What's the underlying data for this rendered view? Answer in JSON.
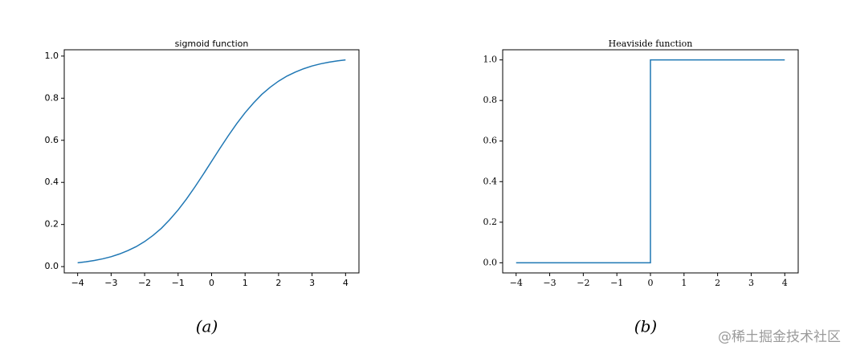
{
  "chart_data": [
    {
      "type": "line",
      "title": "sigmoid function",
      "caption": "(a)",
      "font": "sans",
      "x": [
        -4,
        -3.75,
        -3.5,
        -3.25,
        -3,
        -2.75,
        -2.5,
        -2.25,
        -2,
        -1.75,
        -1.5,
        -1.25,
        -1,
        -0.75,
        -0.5,
        -0.25,
        0,
        0.25,
        0.5,
        0.75,
        1,
        1.25,
        1.5,
        1.75,
        2,
        2.25,
        2.5,
        2.75,
        3,
        3.25,
        3.5,
        3.75,
        4
      ],
      "series": [
        {
          "color": "#1f77b4",
          "values": [
            0.018,
            0.023,
            0.029,
            0.037,
            0.047,
            0.06,
            0.076,
            0.095,
            0.119,
            0.148,
            0.182,
            0.223,
            0.269,
            0.321,
            0.378,
            0.438,
            0.5,
            0.562,
            0.622,
            0.679,
            0.731,
            0.777,
            0.818,
            0.852,
            0.881,
            0.905,
            0.924,
            0.94,
            0.953,
            0.963,
            0.971,
            0.977,
            0.982
          ]
        }
      ],
      "xlim": [
        -4.4,
        4.4
      ],
      "ylim": [
        -0.03,
        1.03
      ],
      "xticks": [
        {
          "value": -4,
          "label": "−4"
        },
        {
          "value": -3,
          "label": "−3"
        },
        {
          "value": -2,
          "label": "−2"
        },
        {
          "value": -1,
          "label": "−1"
        },
        0,
        1,
        2,
        3,
        4
      ],
      "yticks": [
        {
          "value": 0,
          "label": "0.0"
        },
        0.2,
        0.4,
        0.6,
        0.8,
        {
          "value": 1,
          "label": "1.0"
        }
      ]
    },
    {
      "type": "line",
      "title": "Heaviside function",
      "caption": "(b)",
      "font": "serif",
      "x": [
        -4,
        0,
        0,
        4
      ],
      "series": [
        {
          "color": "#1f77b4",
          "values": [
            0,
            0,
            1,
            1
          ]
        }
      ],
      "xlim": [
        -4.4,
        4.4
      ],
      "ylim": [
        -0.05,
        1.05
      ],
      "xticks": [
        {
          "value": -4,
          "label": "−4"
        },
        {
          "value": -3,
          "label": "−3"
        },
        {
          "value": -2,
          "label": "−2"
        },
        {
          "value": -1,
          "label": "−1"
        },
        0,
        1,
        2,
        3,
        4
      ],
      "yticks": [
        {
          "value": 0,
          "label": "0.0"
        },
        0.2,
        0.4,
        0.6,
        0.8,
        {
          "value": 1,
          "label": "1.0"
        }
      ]
    }
  ],
  "watermark": "@稀土掘金技术社区"
}
